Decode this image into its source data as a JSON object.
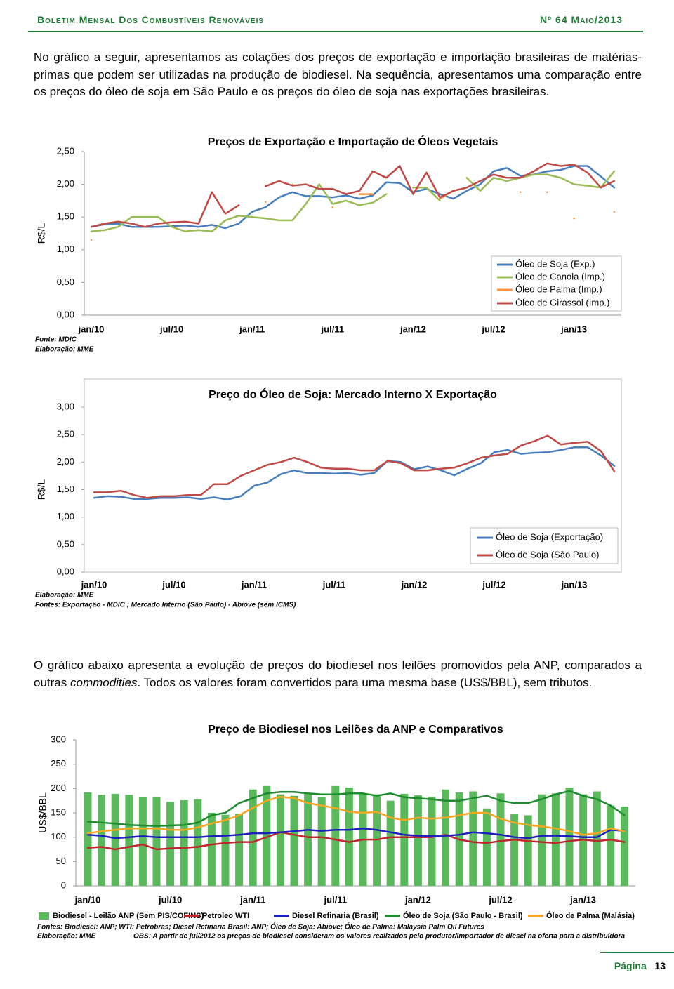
{
  "header": {
    "title": "Boletim Mensal Dos Combustíveis Renováveis",
    "issue": "Nº 64 Maio/2013"
  },
  "paragraphs": [
    "No gráfico a seguir, apresentamos as cotações dos preços de exportação e importação brasileiras de matérias-primas que podem ser utilizadas na produção de biodiesel. Na sequência, apresentamos uma comparação entre os preços do óleo de soja em São Paulo e os preços do óleo de soja nas exportações brasileiras.",
    [
      "O gráfico abaixo apresenta a evolução de preços do biodiesel nos leilões promovidos pela ANP, comparados  a outras ",
      "commodities",
      ". Todos os valores foram convertidos para uma mesma base (US$/BBL), sem tributos."
    ]
  ],
  "footer": {
    "label": "Página",
    "page": "13"
  },
  "chart_data": [
    {
      "type": "line",
      "title": "Preços de Exportação e Importação de Óleos Vegetais",
      "y_label": "R$/L",
      "notes": [
        "Fonte: MDIC",
        "Elaboração: MME"
      ],
      "categories": [
        "jan/10",
        null,
        null,
        null,
        null,
        null,
        "jul/10",
        null,
        null,
        null,
        null,
        null,
        "jan/11",
        null,
        null,
        null,
        null,
        null,
        "jul/11",
        null,
        null,
        null,
        null,
        null,
        "jan/12",
        null,
        null,
        null,
        null,
        null,
        "jul/12",
        null,
        null,
        null,
        null,
        null,
        "jan/13",
        null,
        null,
        null
      ],
      "ylim": [
        0,
        2.5
      ],
      "yticks": [
        {
          "value": 0,
          "label": "0,00"
        },
        {
          "value": 0.5,
          "label": "0,50"
        },
        {
          "value": 1,
          "label": "1,00"
        },
        {
          "value": 1.5,
          "label": "1,50"
        },
        {
          "value": 2,
          "label": "2,00"
        },
        {
          "value": 2.5,
          "label": "2,50"
        }
      ],
      "grid": false,
      "legend": "lower right",
      "series": [
        {
          "name": "Óleo de Soja (Exp.)",
          "color": "#4a7ebb",
          "values": [
            1.35,
            1.39,
            1.4,
            1.35,
            1.35,
            1.35,
            1.36,
            1.37,
            1.35,
            1.38,
            1.33,
            1.4,
            1.58,
            1.65,
            1.8,
            1.88,
            1.82,
            1.82,
            1.8,
            1.83,
            1.78,
            1.83,
            2.03,
            2.02,
            1.88,
            1.93,
            1.85,
            1.78,
            1.9,
            2.0,
            2.2,
            2.25,
            2.13,
            2.15,
            2.2,
            2.22,
            2.28,
            2.28,
            2.12,
            1.95
          ]
        },
        {
          "name": "Óleo de Canola (Imp.)",
          "color": "#9bbb59",
          "values": [
            1.28,
            1.3,
            1.35,
            1.5,
            1.5,
            1.5,
            1.35,
            1.28,
            1.3,
            1.28,
            1.45,
            1.52,
            1.5,
            1.48,
            1.45,
            1.45,
            1.7,
            2.0,
            1.7,
            1.75,
            1.68,
            1.72,
            1.85,
            null,
            1.95,
            1.95,
            1.75,
            null,
            2.1,
            1.9,
            2.1,
            2.05,
            2.1,
            2.15,
            2.15,
            2.1,
            2.0,
            1.98,
            1.95,
            2.2
          ]
        },
        {
          "name": "Óleo de Palma (Imp.)",
          "color": "#f79646",
          "values": [
            1.15,
            null,
            null,
            null,
            null,
            null,
            null,
            null,
            null,
            null,
            null,
            null,
            null,
            1.73,
            null,
            2.0,
            null,
            null,
            1.65,
            null,
            1.85,
            1.85,
            null,
            null,
            null,
            null,
            1.78,
            1.9,
            null,
            null,
            2.15,
            null,
            1.88,
            null,
            1.88,
            null,
            1.48,
            null,
            null,
            1.58
          ]
        },
        {
          "name": "Óleo de Girassol (Imp.)",
          "color": "#be4b48",
          "values": [
            1.35,
            1.4,
            1.43,
            1.4,
            1.35,
            1.4,
            1.42,
            1.43,
            1.4,
            1.88,
            1.55,
            1.68,
            null,
            1.97,
            2.05,
            1.98,
            2.0,
            1.93,
            1.93,
            1.85,
            1.9,
            2.2,
            2.1,
            2.28,
            1.85,
            2.18,
            1.8,
            1.9,
            1.95,
            2.05,
            2.15,
            2.1,
            2.1,
            2.2,
            2.32,
            2.28,
            2.3,
            2.18,
            1.95,
            2.05
          ]
        }
      ]
    },
    {
      "type": "line",
      "title": "Preço do Óleo de Soja: Mercado Interno X Exportação",
      "y_label": "R$/L",
      "notes": [
        "Elaboração: MME",
        "Fontes: Exportação - MDIC ; Mercado Interno (São Paulo) - Abiove (sem ICMS)"
      ],
      "categories": [
        "jan/10",
        null,
        null,
        null,
        null,
        null,
        "jul/10",
        null,
        null,
        null,
        null,
        null,
        "jan/11",
        null,
        null,
        null,
        null,
        null,
        "jul/11",
        null,
        null,
        null,
        null,
        null,
        "jan/12",
        null,
        null,
        null,
        null,
        null,
        "jul/12",
        null,
        null,
        null,
        null,
        null,
        "jan/13",
        null,
        null,
        null
      ],
      "ylim": [
        0,
        3
      ],
      "yticks": [
        {
          "value": 0,
          "label": "0,00"
        },
        {
          "value": 0.5,
          "label": "0,50"
        },
        {
          "value": 1,
          "label": "1,00"
        },
        {
          "value": 1.5,
          "label": "1,50"
        },
        {
          "value": 2,
          "label": "2,00"
        },
        {
          "value": 2.5,
          "label": "2,50"
        },
        {
          "value": 3,
          "label": "3,00"
        }
      ],
      "grid": false,
      "legend": "lower right",
      "series": [
        {
          "name": "Óleo de Soja (Exportação)",
          "color": "#4a7ebb",
          "values": [
            1.35,
            1.38,
            1.37,
            1.33,
            1.33,
            1.35,
            1.35,
            1.36,
            1.33,
            1.36,
            1.32,
            1.38,
            1.57,
            1.63,
            1.78,
            1.85,
            1.8,
            1.8,
            1.79,
            1.8,
            1.77,
            1.8,
            2.02,
            2.0,
            1.87,
            1.92,
            1.85,
            1.76,
            1.88,
            1.98,
            2.18,
            2.22,
            2.15,
            2.17,
            2.18,
            2.22,
            2.27,
            2.27,
            2.12,
            1.93
          ]
        },
        {
          "name": "Óleo de Soja (São Paulo)",
          "color": "#be4b48",
          "values": [
            1.45,
            1.45,
            1.48,
            1.4,
            1.35,
            1.38,
            1.38,
            1.4,
            1.4,
            1.6,
            1.6,
            1.75,
            1.85,
            1.95,
            2.0,
            2.08,
            2.0,
            1.9,
            1.88,
            1.88,
            1.85,
            1.85,
            2.02,
            1.98,
            1.85,
            1.85,
            1.88,
            1.9,
            1.98,
            2.08,
            2.12,
            2.15,
            2.3,
            2.38,
            2.48,
            2.32,
            2.35,
            2.37,
            2.2,
            1.83
          ]
        }
      ]
    },
    {
      "type": "bar",
      "title": "Preço de Biodiesel nos Leilões da ANP e Comparativos",
      "y_label": "US$/BBL",
      "notes": [
        "Fontes: Biodiesel: ANP; WTI: Petrobras; Diesel Refinaria Brasil: ANP; Óleo de Soja: Abiove; Óleo de Palma: Malaysia Palm Oil Futures",
        "Elaboração: MME",
        "OBS: A partir de jul/2012 os preços de biodiesel consideram os valores realizados pelo produtor/importador de diesel na oferta para a distribuidora"
      ],
      "categories": [
        "jan/10",
        null,
        null,
        null,
        null,
        null,
        "jul/10",
        null,
        null,
        null,
        null,
        null,
        "jan/11",
        null,
        null,
        null,
        null,
        null,
        "jul/11",
        null,
        null,
        null,
        null,
        null,
        "jan/12",
        null,
        null,
        null,
        null,
        null,
        "jul/12",
        null,
        null,
        null,
        null,
        null,
        "jan/13",
        null,
        null,
        null
      ],
      "ylim": [
        0,
        300
      ],
      "yticks": [
        0,
        50,
        100,
        150,
        200,
        250,
        300
      ],
      "grid": false,
      "legend": "bottom",
      "series": [
        {
          "name": "Biodiesel - Leilão ANP (Sem PIS/COFINS)",
          "type": "bar",
          "color": "#5cb85c",
          "values": [
            192,
            187,
            189,
            187,
            182,
            182,
            173,
            176,
            178,
            150,
            146,
            148,
            198,
            205,
            188,
            185,
            190,
            183,
            205,
            202,
            189,
            188,
            175,
            189,
            186,
            183,
            198,
            192,
            194,
            159,
            190,
            147,
            145,
            188,
            190,
            202,
            188,
            194,
            165,
            163
          ]
        },
        {
          "name": "Petroleo WTI",
          "type": "line",
          "color": "#c0272d",
          "values": [
            78,
            80,
            75,
            80,
            85,
            75,
            77,
            78,
            80,
            85,
            88,
            90,
            90,
            100,
            110,
            105,
            100,
            100,
            95,
            90,
            95,
            95,
            100,
            100,
            100,
            100,
            105,
            95,
            90,
            88,
            92,
            95,
            92,
            90,
            88,
            92,
            95,
            92,
            95,
            90
          ]
        },
        {
          "name": "Diesel Refinaria (Brasil)",
          "type": "line",
          "color": "#1f1fbf",
          "values": [
            105,
            103,
            98,
            100,
            102,
            100,
            100,
            100,
            100,
            102,
            103,
            105,
            108,
            108,
            110,
            112,
            115,
            113,
            115,
            115,
            118,
            115,
            110,
            105,
            103,
            102,
            103,
            105,
            110,
            108,
            105,
            100,
            98,
            103,
            103,
            102,
            100,
            100,
            115,
            113
          ]
        },
        {
          "name": "Óleo de Soja (São Paulo - Brasil)",
          "type": "line",
          "color": "#1e8c2e",
          "values": [
            132,
            130,
            128,
            125,
            124,
            123,
            124,
            125,
            130,
            145,
            150,
            170,
            180,
            190,
            193,
            193,
            190,
            188,
            188,
            190,
            190,
            185,
            190,
            182,
            180,
            178,
            175,
            175,
            180,
            185,
            175,
            170,
            170,
            178,
            188,
            195,
            185,
            178,
            165,
            145
          ]
        },
        {
          "name": "Óleo de Palma (Malásia)",
          "type": "line",
          "color": "#f5a623",
          "values": [
            108,
            112,
            115,
            118,
            118,
            118,
            115,
            115,
            120,
            128,
            135,
            145,
            160,
            175,
            183,
            180,
            170,
            165,
            160,
            152,
            150,
            152,
            140,
            135,
            140,
            138,
            140,
            145,
            150,
            150,
            138,
            130,
            125,
            122,
            118,
            112,
            105,
            108,
            118,
            112
          ]
        }
      ]
    }
  ]
}
